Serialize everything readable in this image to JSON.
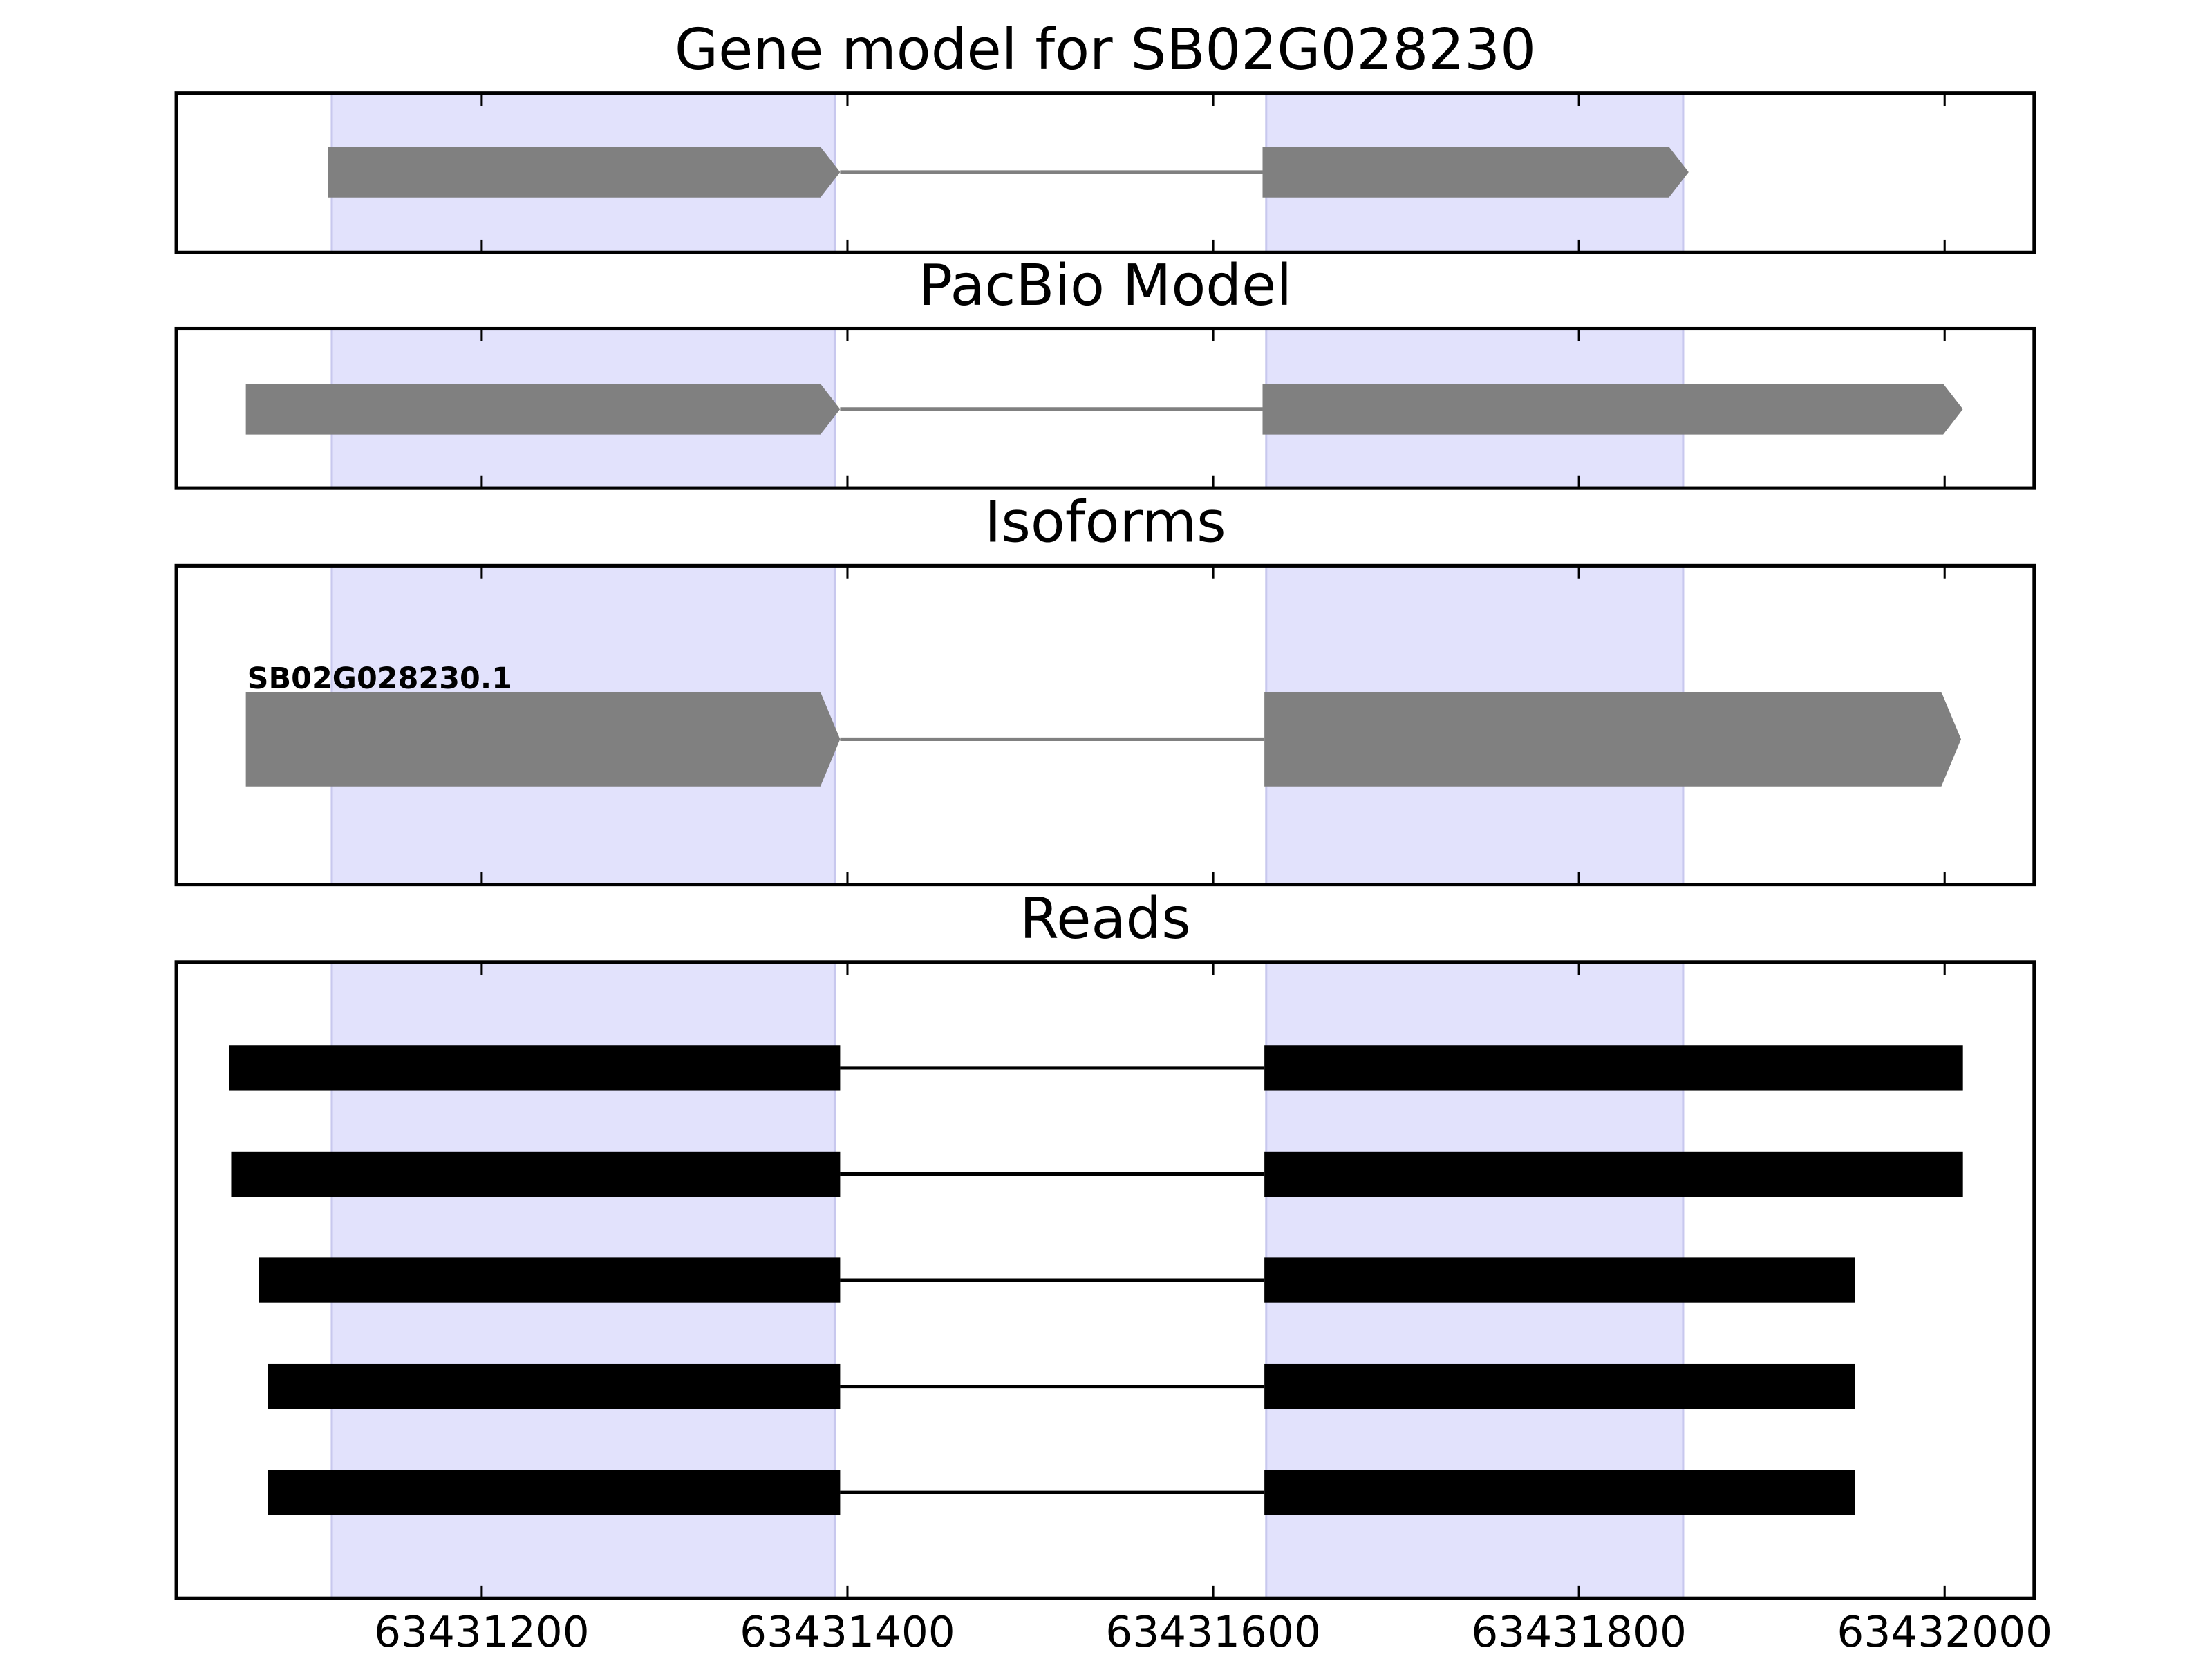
{
  "chart_data": [
    {
      "type": "gene",
      "title": "Gene model for SB02G028230",
      "xlim": [
        63431033,
        63432049
      ],
      "xticks": [
        63431200,
        63431400,
        63431600,
        63431800,
        63432000
      ],
      "tick_labels": false,
      "highlights": [
        [
          63431118,
          63431393
        ],
        [
          63431629,
          63431857
        ]
      ],
      "highlight_color": "#e2e2fc",
      "color": "#808080",
      "features": [
        {
          "exons": [
            [
              63431116,
              63431396
            ],
            [
              63431627,
              63431860
            ]
          ]
        }
      ]
    },
    {
      "type": "gene",
      "title": "PacBio Model",
      "xlim": [
        63431033,
        63432049
      ],
      "xticks": [
        63431200,
        63431400,
        63431600,
        63431800,
        63432000
      ],
      "tick_labels": false,
      "highlights": [
        [
          63431118,
          63431393
        ],
        [
          63431629,
          63431857
        ]
      ],
      "highlight_color": "#e2e2fc",
      "color": "#808080",
      "features": [
        {
          "exons": [
            [
              63431071,
              63431396
            ],
            [
              63431627,
              63432010
            ]
          ]
        }
      ]
    },
    {
      "type": "gene",
      "title": "Isoforms",
      "xlim": [
        63431033,
        63432049
      ],
      "xticks": [
        63431200,
        63431400,
        63431600,
        63431800,
        63432000
      ],
      "tick_labels": false,
      "highlights": [
        [
          63431118,
          63431393
        ],
        [
          63431629,
          63431857
        ]
      ],
      "highlight_color": "#e2e2fc",
      "color": "#808080",
      "features": [
        {
          "name": "SB02G028230.1",
          "exons": [
            [
              63431071,
              63431396
            ],
            [
              63431628,
              63432009
            ]
          ]
        }
      ]
    },
    {
      "type": "reads",
      "title": "Reads",
      "xlim": [
        63431033,
        63432049
      ],
      "xticks": [
        63431200,
        63431400,
        63431600,
        63431800,
        63432000
      ],
      "tick_labels": true,
      "highlights": [
        [
          63431118,
          63431393
        ],
        [
          63431629,
          63431857
        ]
      ],
      "highlight_color": "#e2e2fc",
      "color": "#000000",
      "features": [
        {
          "exons": [
            [
              63431062,
              63431396
            ],
            [
              63431628,
              63432010
            ]
          ]
        },
        {
          "exons": [
            [
              63431063,
              63431396
            ],
            [
              63431628,
              63432010
            ]
          ]
        },
        {
          "exons": [
            [
              63431078,
              63431396
            ],
            [
              63431628,
              63431951
            ]
          ]
        },
        {
          "exons": [
            [
              63431083,
              63431396
            ],
            [
              63431628,
              63431951
            ]
          ]
        },
        {
          "exons": [
            [
              63431083,
              63431396
            ],
            [
              63431628,
              63431951
            ]
          ]
        }
      ]
    }
  ]
}
